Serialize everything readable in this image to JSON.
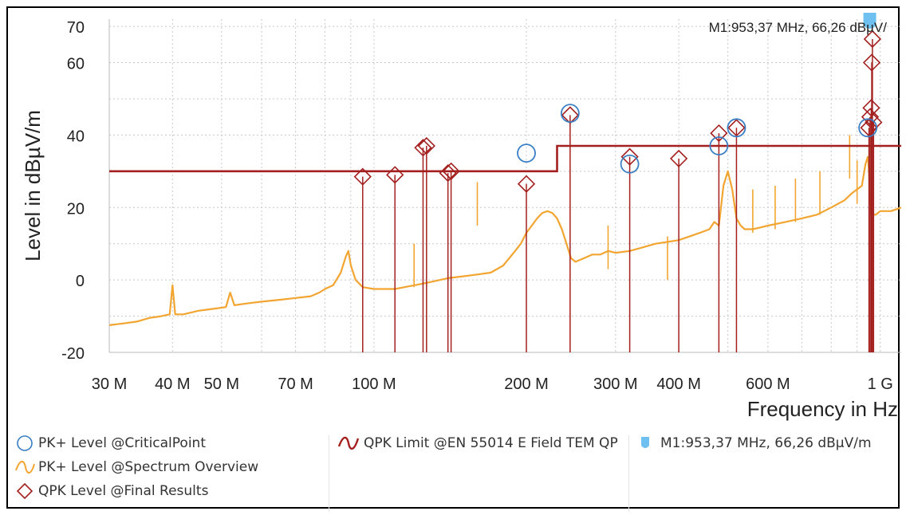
{
  "chart_data": {
    "type": "line",
    "ylabel": "Level in dBµV/m",
    "xlabel": "Frequency in Hz",
    "xscale": "log",
    "xlim": [
      30,
      1100
    ],
    "ylim": [
      -20,
      72
    ],
    "grid": true,
    "x_tick_labels": [
      {
        "value": 30,
        "label": "30 M"
      },
      {
        "value": 40,
        "label": "40 M"
      },
      {
        "value": 50,
        "label": "50 M"
      },
      {
        "value": 70,
        "label": "70 M"
      },
      {
        "value": 100,
        "label": "100 M"
      },
      {
        "value": 200,
        "label": "200 M"
      },
      {
        "value": 300,
        "label": "300 M"
      },
      {
        "value": 400,
        "label": "400 M"
      },
      {
        "value": 600,
        "label": "600 M"
      },
      {
        "value": 1000,
        "label": "1 G"
      }
    ],
    "y_tick_labels": [
      {
        "value": 70,
        "label": "70"
      },
      {
        "value": 60,
        "label": "60"
      },
      {
        "value": 40,
        "label": "40"
      },
      {
        "value": 20,
        "label": "20"
      },
      {
        "value": 0,
        "label": "0"
      },
      {
        "value": -20,
        "label": "-20"
      }
    ],
    "colors": {
      "spectrum": "#f2a531",
      "limit": "#a3201f",
      "qpk": "#a3201f",
      "critical": "#3a7fc4",
      "marker": "#6ec0f0",
      "grid": "#c8c8c8"
    },
    "series": [
      {
        "name": "PK+ Level @Spectrum Overview",
        "style": "line",
        "x_mhz": [
          30,
          32,
          34,
          36,
          38,
          39.5,
          40,
          40.5,
          42,
          45,
          48,
          51,
          52,
          53,
          56,
          60,
          65,
          70,
          75,
          78,
          80,
          83,
          86,
          88,
          89,
          90,
          92,
          95,
          100,
          110,
          120,
          125,
          130,
          140,
          150,
          160,
          170,
          175,
          180,
          185,
          190,
          195,
          200,
          205,
          210,
          215,
          220,
          225,
          230,
          235,
          240,
          245,
          250,
          260,
          270,
          280,
          290,
          300,
          320,
          340,
          360,
          380,
          400,
          420,
          440,
          460,
          470,
          480,
          490,
          500,
          510,
          520,
          530,
          540,
          560,
          580,
          600,
          650,
          700,
          750,
          800,
          850,
          880,
          900,
          920,
          935,
          945,
          950,
          955,
          960,
          980,
          1000,
          1050,
          1100
        ],
        "y_dbuv": [
          -12.5,
          -12,
          -11.5,
          -10.5,
          -10,
          -9.5,
          -1.5,
          -9.5,
          -9.5,
          -8.5,
          -8,
          -7.5,
          -3.5,
          -7,
          -6.5,
          -6,
          -5.5,
          -5,
          -4.5,
          -3.5,
          -2.5,
          -1.5,
          2,
          6.5,
          8,
          4,
          0,
          -2,
          -2.5,
          -2.5,
          -1.5,
          -1,
          -0.5,
          0.5,
          1,
          1.5,
          2,
          3,
          4,
          6,
          8,
          10,
          13,
          15,
          17,
          18.5,
          19,
          18.5,
          17,
          14,
          10,
          6,
          5,
          6,
          7,
          7,
          8,
          7.5,
          8,
          9,
          10,
          10.5,
          11,
          12,
          13,
          14,
          16,
          15,
          26,
          30,
          25,
          17,
          15,
          14,
          14,
          14.5,
          15,
          16,
          17,
          18,
          20,
          22,
          24,
          25,
          26,
          32,
          34,
          30,
          22,
          18,
          18,
          19,
          19,
          20
        ]
      },
      {
        "name": "QPK Limit @EN 55014 E Field TEM QP",
        "style": "step",
        "x_mhz": [
          30,
          230,
          230,
          1100
        ],
        "y_dbuv": [
          30,
          30,
          37,
          37
        ]
      },
      {
        "name": "QPK Level @Final Results",
        "style": "diamond",
        "x_mhz": [
          95,
          110,
          125,
          127,
          140,
          142,
          200,
          244,
          320,
          400,
          480,
          520,
          950,
          955,
          960,
          962,
          965,
          970
        ],
        "y_dbuv": [
          28.5,
          29,
          36.5,
          37,
          29.5,
          30,
          26.5,
          45.5,
          34,
          33.5,
          40.5,
          42,
          42,
          45,
          47.5,
          60,
          66.5,
          43.5
        ]
      },
      {
        "name": "PK+ Level @CriticalPoint",
        "style": "circle",
        "x_mhz": [
          200,
          244,
          320,
          480,
          520,
          945
        ],
        "y_dbuv": [
          35,
          46,
          32,
          37,
          42,
          42
        ]
      }
    ],
    "spikes": [
      {
        "x_mhz": 120,
        "y_dbuv": 10
      },
      {
        "x_mhz": 160,
        "y_dbuv": 27
      },
      {
        "x_mhz": 290,
        "y_dbuv": 15
      },
      {
        "x_mhz": 380,
        "y_dbuv": 12
      },
      {
        "x_mhz": 560,
        "y_dbuv": 25
      },
      {
        "x_mhz": 620,
        "y_dbuv": 26
      },
      {
        "x_mhz": 680,
        "y_dbuv": 28
      },
      {
        "x_mhz": 760,
        "y_dbuv": 30
      },
      {
        "x_mhz": 870,
        "y_dbuv": 40
      },
      {
        "x_mhz": 900,
        "y_dbuv": 33
      }
    ],
    "marker": {
      "label": "M1:953,37 MHz, 66,26 dBµV/m",
      "x_mhz": 953.37,
      "y_dbuv": 66.26
    },
    "top_marker_text": "M1:953,37 MHz, 66,26 dBµV/"
  },
  "legend": {
    "critical_label": "PK+ Level @CriticalPoint",
    "spectrum_label": "PK+ Level @Spectrum Overview",
    "qpk_label": "QPK Level @Final Results",
    "limit_label": "QPK Limit @EN 55014 E Field TEM QP",
    "marker_label": "M1:953,37 MHz, 66,26 dBµV/m"
  }
}
